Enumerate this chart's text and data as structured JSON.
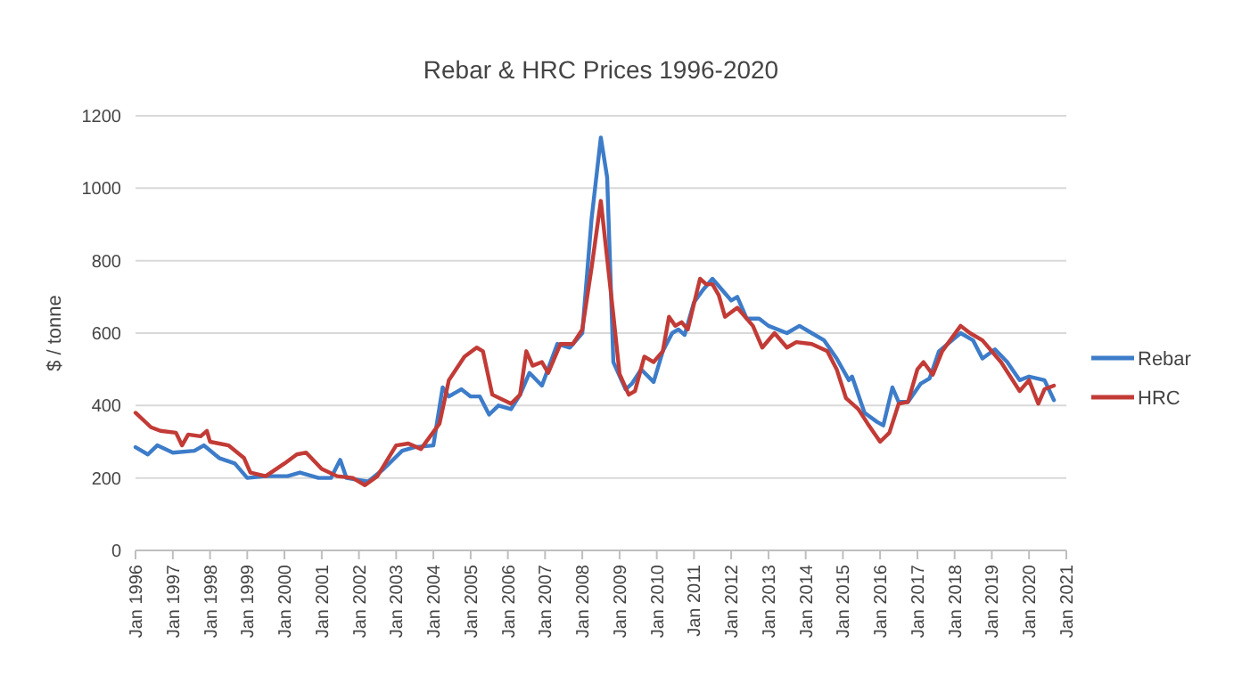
{
  "chart_data": {
    "type": "line",
    "title": "Rebar & HRC  Prices 1996-2020",
    "ylabel": "$ / tonne",
    "xlim": [
      "1996-01",
      "2021-01"
    ],
    "xticks": [
      {
        "value": "1996-01",
        "label": "Jan 1996"
      },
      {
        "value": "1997-01",
        "label": "Jan 1997"
      },
      {
        "value": "1998-01",
        "label": "Jan 1998"
      },
      {
        "value": "1999-01",
        "label": "Jan 1999"
      },
      {
        "value": "2000-01",
        "label": "Jan 2000"
      },
      {
        "value": "2001-01",
        "label": "Jan 2001"
      },
      {
        "value": "2002-01",
        "label": "Jan 2002"
      },
      {
        "value": "2003-01",
        "label": "Jan 2003"
      },
      {
        "value": "2004-01",
        "label": "Jan 2004"
      },
      {
        "value": "2005-01",
        "label": "Jan 2005"
      },
      {
        "value": "2006-01",
        "label": "Jan 2006"
      },
      {
        "value": "2007-01",
        "label": "Jan 2007"
      },
      {
        "value": "2008-01",
        "label": "Jan 2008"
      },
      {
        "value": "2009-01",
        "label": "Jan 2009"
      },
      {
        "value": "2010-01",
        "label": "Jan 2010"
      },
      {
        "value": "2011-01",
        "label": "Jan 2011"
      },
      {
        "value": "2012-01",
        "label": "Jan 2012"
      },
      {
        "value": "2013-01",
        "label": "Jan 2013"
      },
      {
        "value": "2014-01",
        "label": "Jan 2014"
      },
      {
        "value": "2015-01",
        "label": "Jan 2015"
      },
      {
        "value": "2016-01",
        "label": "Jan 2016"
      },
      {
        "value": "2017-01",
        "label": "Jan 2017"
      },
      {
        "value": "2018-01",
        "label": "Jan 2018"
      },
      {
        "value": "2019-01",
        "label": "Jan 2019"
      },
      {
        "value": "2020-01",
        "label": "Jan 2020"
      },
      {
        "value": "2021-01",
        "label": "Jan 2021"
      }
    ],
    "ylim": [
      0,
      1200
    ],
    "yticks": [
      0,
      200,
      400,
      600,
      800,
      1000,
      1200
    ],
    "grid": "y",
    "legend": "right",
    "line_style": "solid",
    "series": [
      {
        "name": "Rebar",
        "color": "#3d7cc9",
        "x": [
          "1996-01",
          "1996-05",
          "1996-08",
          "1997-01",
          "1997-08",
          "1997-11",
          "1998-04",
          "1998-09",
          "1999-01",
          "1999-07",
          "2000-02",
          "2000-06",
          "2000-12",
          "2001-04",
          "2001-07",
          "2001-09",
          "2002-04",
          "2002-09",
          "2003-03",
          "2003-07",
          "2004-01",
          "2004-04",
          "2004-06",
          "2004-10",
          "2005-01",
          "2005-04",
          "2005-07",
          "2005-10",
          "2006-02",
          "2006-05",
          "2006-08",
          "2006-12",
          "2007-05",
          "2007-09",
          "2008-01",
          "2008-04",
          "2008-07",
          "2008-09",
          "2008-11",
          "2009-03",
          "2009-05",
          "2009-08",
          "2009-12",
          "2010-03",
          "2010-06",
          "2010-08",
          "2010-10",
          "2011-01",
          "2011-04",
          "2011-07",
          "2011-11",
          "2012-01",
          "2012-03",
          "2012-06",
          "2012-10",
          "2013-01",
          "2013-07",
          "2013-11",
          "2014-03",
          "2014-07",
          "2014-11",
          "2015-03",
          "2015-04",
          "2015-08",
          "2015-12",
          "2016-02",
          "2016-05",
          "2016-07",
          "2016-10",
          "2017-02",
          "2017-05",
          "2017-08",
          "2018-03",
          "2018-07",
          "2018-10",
          "2019-02",
          "2019-06",
          "2019-10",
          "2020-01",
          "2020-06",
          "2020-09"
        ],
        "values": [
          285,
          265,
          290,
          270,
          275,
          290,
          255,
          240,
          200,
          205,
          205,
          215,
          200,
          200,
          250,
          200,
          190,
          225,
          275,
          285,
          290,
          450,
          425,
          445,
          425,
          425,
          375,
          400,
          390,
          430,
          490,
          455,
          570,
          560,
          600,
          915,
          1140,
          1030,
          520,
          445,
          460,
          500,
          465,
          550,
          600,
          610,
          595,
          685,
          720,
          750,
          710,
          690,
          700,
          640,
          640,
          620,
          600,
          620,
          600,
          580,
          530,
          470,
          480,
          380,
          355,
          345,
          450,
          410,
          410,
          460,
          475,
          550,
          600,
          580,
          530,
          555,
          520,
          470,
          480,
          470,
          415
        ]
      },
      {
        "name": "HRC",
        "color": "#c23b36",
        "x": [
          "1996-01",
          "1996-06",
          "1996-09",
          "1997-02",
          "1997-04",
          "1997-06",
          "1997-10",
          "1997-12",
          "1998-01",
          "1998-07",
          "1998-12",
          "1999-02",
          "1999-07",
          "2000-01",
          "2000-05",
          "2000-08",
          "2001-01",
          "2001-06",
          "2001-11",
          "2002-03",
          "2002-07",
          "2003-01",
          "2003-05",
          "2003-09",
          "2004-03",
          "2004-06",
          "2004-11",
          "2005-03",
          "2005-05",
          "2005-08",
          "2006-02",
          "2006-05",
          "2006-07",
          "2006-09",
          "2006-12",
          "2007-02",
          "2007-06",
          "2007-10",
          "2008-01",
          "2008-04",
          "2008-07",
          "2008-11",
          "2009-01",
          "2009-04",
          "2009-06",
          "2009-09",
          "2009-12",
          "2010-03",
          "2010-05",
          "2010-07",
          "2010-09",
          "2010-11",
          "2011-03",
          "2011-05",
          "2011-07",
          "2011-09",
          "2011-11",
          "2012-03",
          "2012-08",
          "2012-11",
          "2013-03",
          "2013-07",
          "2013-10",
          "2014-03",
          "2014-08",
          "2014-11",
          "2015-02",
          "2015-06",
          "2015-09",
          "2016-01",
          "2016-04",
          "2016-07",
          "2016-10",
          "2017-01",
          "2017-03",
          "2017-06",
          "2017-09",
          "2018-03",
          "2018-06",
          "2018-10",
          "2019-04",
          "2019-10",
          "2020-01",
          "2020-04",
          "2020-06",
          "2020-09"
        ],
        "values": [
          380,
          340,
          330,
          325,
          290,
          320,
          315,
          330,
          300,
          290,
          255,
          215,
          205,
          240,
          265,
          270,
          225,
          205,
          200,
          180,
          205,
          290,
          295,
          280,
          350,
          470,
          535,
          560,
          550,
          430,
          405,
          430,
          550,
          510,
          520,
          490,
          570,
          570,
          610,
          780,
          965,
          650,
          487,
          430,
          440,
          535,
          520,
          550,
          645,
          620,
          630,
          610,
          750,
          735,
          735,
          705,
          645,
          670,
          620,
          560,
          600,
          560,
          575,
          570,
          550,
          500,
          420,
          390,
          350,
          300,
          325,
          405,
          410,
          500,
          520,
          485,
          550,
          620,
          600,
          580,
          520,
          440,
          470,
          405,
          445,
          455
        ]
      }
    ]
  }
}
